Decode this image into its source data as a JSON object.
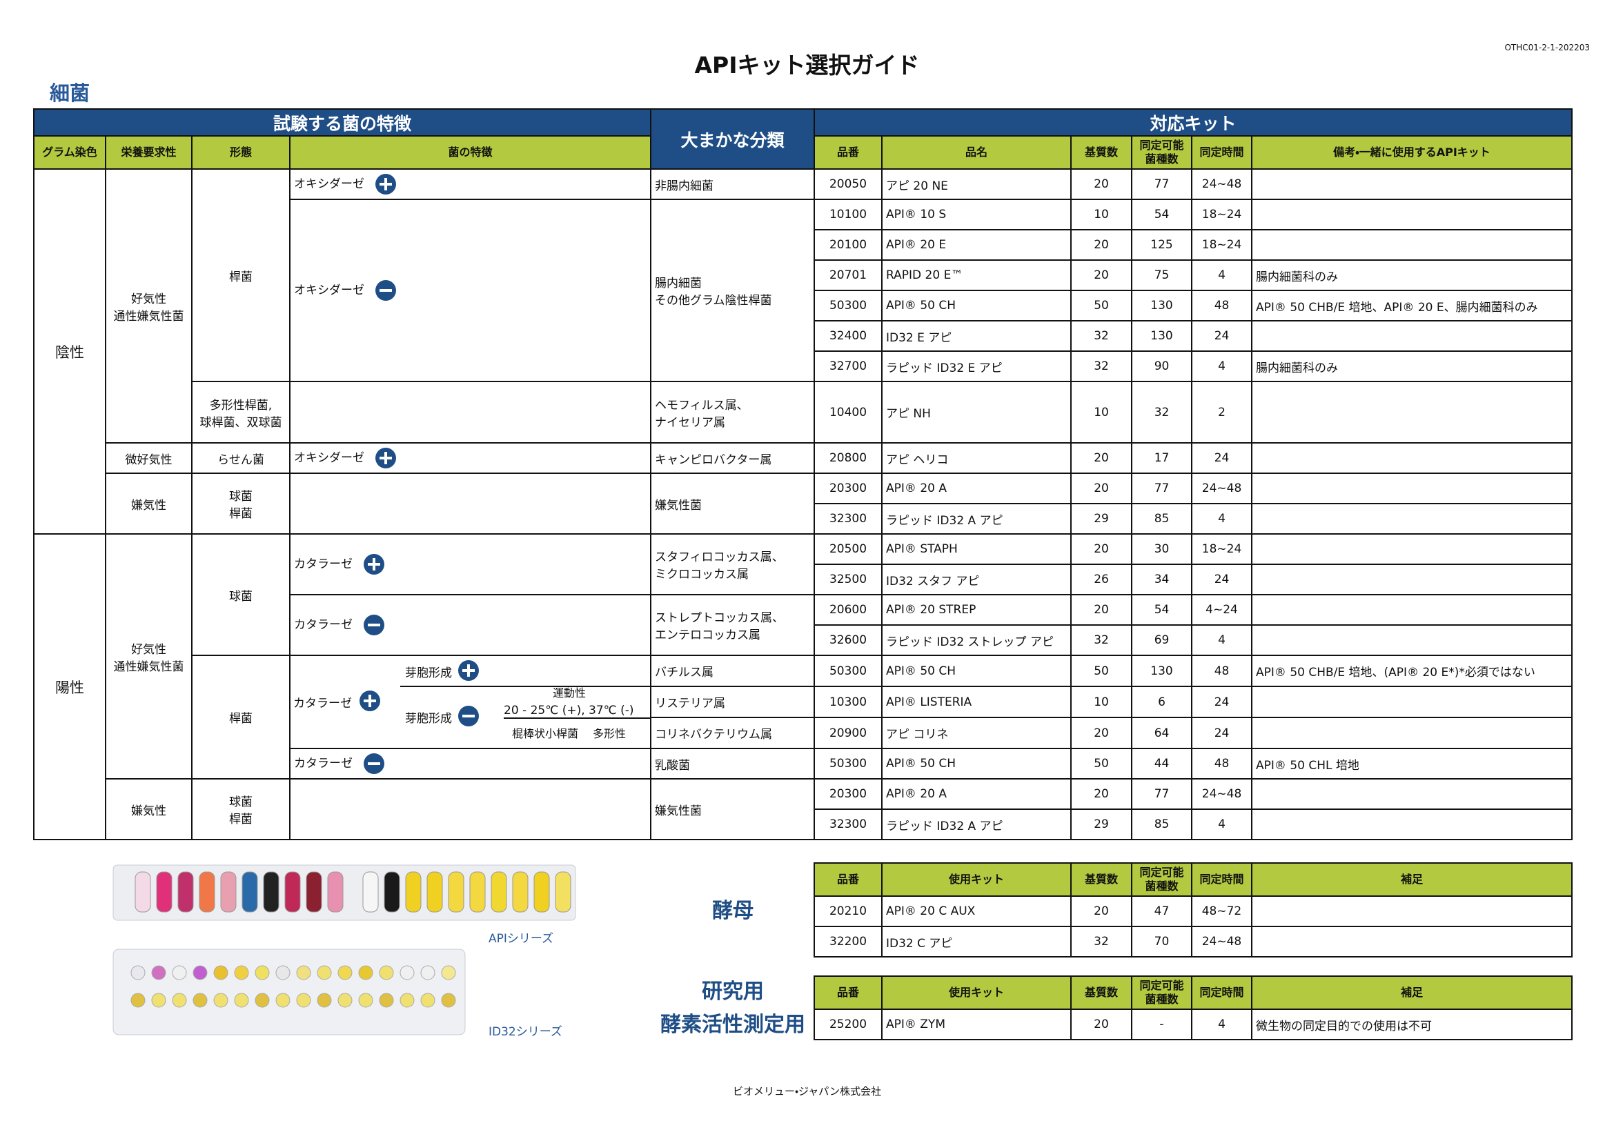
{
  "header": {
    "title": "APIキット選択ガイド",
    "doc_code": "OTHC01-2-1-202203"
  },
  "bacteria": {
    "title": "細菌",
    "group_headers": {
      "features": "試験する菌の特徴",
      "classification": "大まかな分類",
      "kits": "対応キット"
    },
    "columns": [
      "グラム染色",
      "栄養要求性",
      "形態",
      "菌の特徴",
      "品番",
      "品名",
      "基質数",
      "同定可能菌種数",
      "同定時間",
      "備考・一緒に使用するAPIキット"
    ],
    "gram": [
      "陰性",
      "陽性"
    ],
    "oxygen": [
      "好気性\n通性嫌気性菌",
      "微好気性",
      "嫌気性",
      "好気性\n通性嫌気性菌",
      "嫌気性"
    ],
    "morphology": [
      "桿菌",
      "多形性桿菌,\n球桿菌、双球菌",
      "らせん菌",
      "球菌\n桿菌",
      "球菌",
      "桿菌",
      "球菌\n桿菌"
    ],
    "features": [
      "オキシダーゼ",
      "オキシダーゼ",
      "オキシダーゼ",
      "カタラーゼ",
      "カタラーゼ",
      "カタラーゼ",
      "芽胞形成",
      "芽胞形成",
      "運動性",
      "20 - 25℃ (+), 37℃ (-)",
      "棍棒状小桿菌",
      "多形性",
      "カタラーゼ"
    ],
    "classification": [
      "非腸内細菌",
      "腸内細菌\nその他グラム陰性桿菌",
      "ヘモフィルス属、\nナイセリア属",
      "キャンピロバクター属",
      "嫌気性菌",
      "スタフィロコッカス属、\nミクロコッカス属",
      "ストレプトコッカス属、\nエンテロコッカス属",
      "バチルス属",
      "リステリア属",
      "コリネバクテリウム属",
      "乳酸菌",
      "嫌気性菌"
    ],
    "kits": [
      {
        "code": "20050",
        "name": "アピ 20 NE",
        "substrates": 20,
        "species": 77,
        "time": "24~48"
      },
      {
        "code": "10100",
        "name": "API® 10 S",
        "substrates": 10,
        "species": 54,
        "time": "18~24"
      },
      {
        "code": "20100",
        "name": "API® 20 E",
        "substrates": 20,
        "species": 125,
        "time": "18~24"
      },
      {
        "code": "20701",
        "name": "RAPID 20 E™",
        "substrates": 20,
        "species": 75,
        "time": "4",
        "note": "腸内細菌科のみ"
      },
      {
        "code": "50300",
        "name": "API® 50 CH",
        "substrates": 50,
        "species": 130,
        "time": "48",
        "note": "API® 50 CHB/E 培地、API® 20 E、腸内細菌科のみ"
      },
      {
        "code": "32400",
        "name": "ID32 E アピ",
        "substrates": 32,
        "species": 130,
        "time": "24"
      },
      {
        "code": "32700",
        "name": "ラピッド ID32 E アピ",
        "substrates": 32,
        "species": 90,
        "time": "4",
        "note": "腸内細菌科のみ"
      },
      {
        "code": "10400",
        "name": "アピ NH",
        "substrates": 10,
        "species": 32,
        "time": "2"
      },
      {
        "code": "20800",
        "name": "アピ ヘリコ",
        "substrates": 20,
        "species": 17,
        "time": "24"
      },
      {
        "code": "20300",
        "name": "API® 20 A",
        "substrates": 20,
        "species": 77,
        "time": "24~48"
      },
      {
        "code": "32300",
        "name": "ラピッド ID32 A アピ",
        "substrates": 29,
        "species": 85,
        "time": "4"
      },
      {
        "code": "20500",
        "name": "API® STAPH",
        "substrates": 20,
        "species": 30,
        "time": "18~24"
      },
      {
        "code": "32500",
        "name": "ID32 スタフ アピ",
        "substrates": 26,
        "species": 34,
        "time": "24"
      },
      {
        "code": "20600",
        "name": "API® 20 STREP",
        "substrates": 20,
        "species": 54,
        "time": "4~24"
      },
      {
        "code": "32600",
        "name": "ラピッド ID32 ストレップ アピ",
        "substrates": 32,
        "species": 69,
        "time": "4"
      },
      {
        "code": "50300",
        "name": "API® 50 CH",
        "substrates": 50,
        "species": 130,
        "time": "48",
        "note": "API® 50 CHB/E 培地、(API® 20 E*)*必須ではない"
      },
      {
        "code": "10300",
        "name": "API® LISTERIA",
        "substrates": 10,
        "species": 6,
        "time": "24"
      },
      {
        "code": "20900",
        "name": "アピ コリネ",
        "substrates": 20,
        "species": 64,
        "time": "24"
      },
      {
        "code": "50300",
        "name": "API® 50 CH",
        "substrates": 50,
        "species": 44,
        "time": "48",
        "note": "API® 50 CHL 培地"
      },
      {
        "code": "20300",
        "name": "API® 20 A",
        "substrates": 20,
        "species": 77,
        "time": "24~48"
      },
      {
        "code": "32300",
        "name": "ラピッド ID32 A アピ",
        "substrates": 29,
        "species": 85,
        "time": "4"
      }
    ]
  },
  "yeast": {
    "title": "酵母",
    "columns": [
      "品番",
      "使用キット",
      "基質数",
      "同定可能菌種数",
      "同定時間",
      "補足"
    ],
    "kits": [
      {
        "code": "20210",
        "name": "API® 20 C AUX",
        "substrates": 20,
        "species": 47,
        "time": "48~72"
      },
      {
        "code": "32200",
        "name": "ID32 C アピ",
        "substrates": 32,
        "species": 70,
        "time": "24~48"
      }
    ]
  },
  "research": {
    "title": "研究用\n酵素活性測定用",
    "columns": [
      "品番",
      "使用キット",
      "基質数",
      "同定可能菌種数",
      "同定時間",
      "補足"
    ],
    "kits": [
      {
        "code": "25200",
        "name": "API® ZYM",
        "substrates": 20,
        "species": "-",
        "time": "4",
        "note": "微生物の同定目的での使用は不可"
      }
    ]
  },
  "images": {
    "api_caption": "APIシリーズ",
    "id32_caption": "ID32シリーズ"
  },
  "footer": {
    "company": "ビオメリュー・ジャパン株式会社"
  }
}
